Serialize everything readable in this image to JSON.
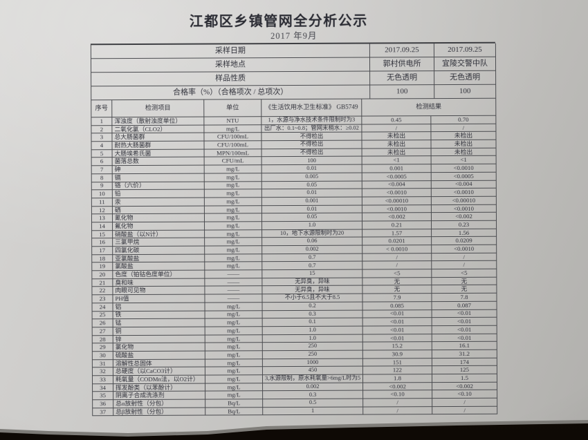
{
  "title": "江都区乡镇管网全分析公示",
  "subtitle": "2017 年9月",
  "info_rows": [
    {
      "label": "采样日期",
      "v1": "2017.09.25",
      "v2": "2017.09.25"
    },
    {
      "label": "采样地点",
      "v1": "郭村供电所",
      "v2": "宜陵交警中队"
    },
    {
      "label": "样品性质",
      "v1": "无色透明",
      "v2": "无色透明"
    },
    {
      "label": "合格率（%）（合格项次 / 总项次）",
      "v1": "100",
      "v2": "100"
    }
  ],
  "columns": {
    "no": "序号",
    "item": "检测项目",
    "unit": "单位",
    "standard": "《生活饮用水卫生标准》 GB5749",
    "result": "检测结果"
  },
  "rows": [
    {
      "no": "1",
      "name": "浑浊度（散射浊度单位）",
      "unit": "NTU",
      "standard": "1，水源与净水技术条件限制时为3",
      "r1": "0.45",
      "r2": "0.70"
    },
    {
      "no": "2",
      "name": "二氧化氯（CLO2）",
      "unit": "mg/L",
      "standard": "出厂水：0.1~0.8；管网末梢水：≥0.02",
      "r1": "/",
      "r2": "/"
    },
    {
      "no": "3",
      "name": "总大肠菌群",
      "unit": "CFU/100mL",
      "standard": "不得检出",
      "r1": "未检出",
      "r2": "未检出"
    },
    {
      "no": "4",
      "name": "耐热大肠菌群",
      "unit": "CFU/100mL",
      "standard": "不得检出",
      "r1": "未检出",
      "r2": "未检出"
    },
    {
      "no": "5",
      "name": "大肠埃希氏菌",
      "unit": "MPN/100mL",
      "standard": "不得检出",
      "r1": "未检出",
      "r2": "未检出"
    },
    {
      "no": "6",
      "name": "菌落总数",
      "unit": "CFU/mL",
      "standard": "100",
      "r1": "<1",
      "r2": "<1"
    },
    {
      "no": "7",
      "name": "砷",
      "unit": "mg/L",
      "standard": "0.01",
      "r1": "0.001",
      "r2": "<0.0010"
    },
    {
      "no": "8",
      "name": "镉",
      "unit": "mg/L",
      "standard": "0.005",
      "r1": "<0.0005",
      "r2": "<0.0005"
    },
    {
      "no": "9",
      "name": "铬（六价）",
      "unit": "mg/L",
      "standard": "0.05",
      "r1": "<0.004",
      "r2": "<0.004"
    },
    {
      "no": "10",
      "name": "铅",
      "unit": "mg/L",
      "standard": "0.01",
      "r1": "<0.0010",
      "r2": "<0.0010"
    },
    {
      "no": "11",
      "name": "汞",
      "unit": "mg/L",
      "standard": "0.001",
      "r1": "<0.00010",
      "r2": "<0.00010"
    },
    {
      "no": "12",
      "name": "硒",
      "unit": "mg/L",
      "standard": "0.01",
      "r1": "<0.0010",
      "r2": "<0.0010"
    },
    {
      "no": "13",
      "name": "氰化物",
      "unit": "mg/L",
      "standard": "0.05",
      "r1": "<0.002",
      "r2": "<0.002"
    },
    {
      "no": "14",
      "name": "氟化物",
      "unit": "mg/L",
      "standard": "1.0",
      "r1": "0.21",
      "r2": "0.23"
    },
    {
      "no": "15",
      "name": "硝酸盐（以N计）",
      "unit": "mg/L",
      "standard": "10，地下水源限制时为20",
      "r1": "1.57",
      "r2": "1.56"
    },
    {
      "no": "16",
      "name": "三氯甲烷",
      "unit": "mg/L",
      "standard": "0.06",
      "r1": "0.0201",
      "r2": "0.0209"
    },
    {
      "no": "17",
      "name": "四氯化碳",
      "unit": "mg/L",
      "standard": "0.002",
      "r1": "< 0.0010",
      "r2": "<0.0010"
    },
    {
      "no": "18",
      "name": "亚氯酸盐",
      "unit": "mg/L",
      "standard": "0.7",
      "r1": "/",
      "r2": "/"
    },
    {
      "no": "19",
      "name": "氯酸盐",
      "unit": "mg/L",
      "standard": "0.7",
      "r1": "/",
      "r2": "/"
    },
    {
      "no": "20",
      "name": "色度（铂钴色度单位）",
      "unit": "——",
      "standard": "15",
      "r1": "<5",
      "r2": "<5"
    },
    {
      "no": "21",
      "name": "臭和味",
      "unit": "——",
      "standard": "无异臭，异味",
      "r1": "无",
      "r2": "无"
    },
    {
      "no": "22",
      "name": "肉眼可见物",
      "unit": "——",
      "standard": "无异臭，异味",
      "r1": "无",
      "r2": "无"
    },
    {
      "no": "23",
      "name": "PH值",
      "unit": "——",
      "standard": "不小于6.5且不大于8.5",
      "r1": "7.9",
      "r2": "7.8"
    },
    {
      "no": "24",
      "name": "铝",
      "unit": "mg/L",
      "standard": "0.2",
      "r1": "0.085",
      "r2": "0.087"
    },
    {
      "no": "25",
      "name": "铁",
      "unit": "mg/L",
      "standard": "0.3",
      "r1": "<0.01",
      "r2": "<0.01"
    },
    {
      "no": "26",
      "name": "锰",
      "unit": "mg/L",
      "standard": "0.1",
      "r1": "<0.01",
      "r2": "<0.01"
    },
    {
      "no": "27",
      "name": "铜",
      "unit": "mg/L",
      "standard": "1.0",
      "r1": "<0.01",
      "r2": "<0.01"
    },
    {
      "no": "28",
      "name": "锌",
      "unit": "mg/L",
      "standard": "1.0",
      "r1": "<0.01",
      "r2": "<0.01"
    },
    {
      "no": "29",
      "name": "氯化物",
      "unit": "mg/L",
      "standard": "250",
      "r1": "15.2",
      "r2": "16.1"
    },
    {
      "no": "30",
      "name": "硫酸盐",
      "unit": "mg/L",
      "standard": "250",
      "r1": "30.9",
      "r2": "31.2"
    },
    {
      "no": "31",
      "name": "溶解性总固体",
      "unit": "mg/L",
      "standard": "1000",
      "r1": "151",
      "r2": "174"
    },
    {
      "no": "32",
      "name": "总硬度（以CaCO3计）",
      "unit": "mg/L",
      "standard": "450",
      "r1": "122",
      "r2": "125"
    },
    {
      "no": "33",
      "name": "耗氧量（CODMn法，以O2计）",
      "unit": "mg/L",
      "standard": "3,水源限制，原水耗氧量>6mg/L时为5",
      "r1": "1.8",
      "r2": "1.5"
    },
    {
      "no": "34",
      "name": "挥发酚类（以苯酚计）",
      "unit": "mg/L",
      "standard": "0.002",
      "r1": "<0.002",
      "r2": "<0.002"
    },
    {
      "no": "35",
      "name": "阴离子合成洗涤剂",
      "unit": "mg/L",
      "standard": "0.3",
      "r1": "<0.10",
      "r2": "<0.10"
    },
    {
      "no": "36",
      "name": "总α放射性（分包）",
      "unit": "Bq/L",
      "standard": "0.5",
      "r1": "/",
      "r2": "/"
    },
    {
      "no": "37",
      "name": "总β放射性（分包）",
      "unit": "Bq/L",
      "standard": "1",
      "r1": "/",
      "r2": "/"
    }
  ],
  "colors": {
    "paper": "#c7c6c4",
    "ink": "#30313a",
    "table_line": "#4a4b4f",
    "desk": "#140c06"
  }
}
